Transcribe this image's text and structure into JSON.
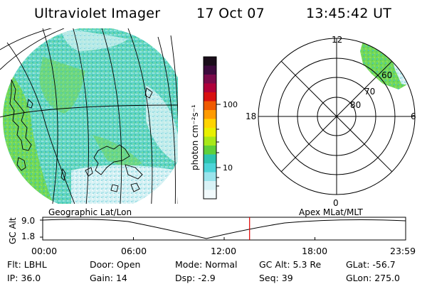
{
  "header": {
    "title": "Ultraviolet Imager",
    "date": "17 Oct 07",
    "time": "13:45:42 UT"
  },
  "colorbar": {
    "unit": "photon cm⁻²s⁻¹",
    "ticks": [
      "100",
      "10"
    ],
    "colors": [
      "#1a0d1a",
      "#3d0a3d",
      "#7a0a4a",
      "#b0003a",
      "#d81010",
      "#ef5a00",
      "#ff9a00",
      "#ffd400",
      "#e8f000",
      "#a8e818",
      "#5fd03a",
      "#2dc4b0",
      "#4cd4d8",
      "#9ae4ec",
      "#d8f2f6",
      "#f2fafc"
    ]
  },
  "geo_map": {
    "label": "Geographic Lat/Lon"
  },
  "polar_plot": {
    "label": "Apex MLat/MLT",
    "mlt_labels": {
      "top": "12",
      "left": "18",
      "right": "6",
      "bottom": "0"
    },
    "lat_labels": [
      "60",
      "70",
      "80"
    ]
  },
  "orbit": {
    "axis_label": "GC Alt",
    "y_ticks": [
      "9.0",
      "1.8"
    ],
    "x_ticks": [
      "00:00",
      "06:00",
      "12:00",
      "18:00",
      "23:59"
    ],
    "current_time_fraction": 0.57,
    "current_marker_color": "#e00000"
  },
  "info": {
    "row1": [
      {
        "key": "Flt:",
        "value": "LBHL"
      },
      {
        "key": "Door:",
        "value": "Open"
      },
      {
        "key": "Mode:",
        "value": "Normal"
      },
      {
        "key": "GC Alt:",
        "value": "5.3 Re"
      },
      {
        "key": "GLat:",
        "value": "-56.7"
      }
    ],
    "row2": [
      {
        "key": "IP:",
        "value": "36.0"
      },
      {
        "key": "Gain:",
        "value": "14"
      },
      {
        "key": "Dsp:",
        "value": "-2.9"
      },
      {
        "key": "Seq:",
        "value": "39"
      },
      {
        "key": "GLon:",
        "value": "275.0"
      }
    ]
  }
}
